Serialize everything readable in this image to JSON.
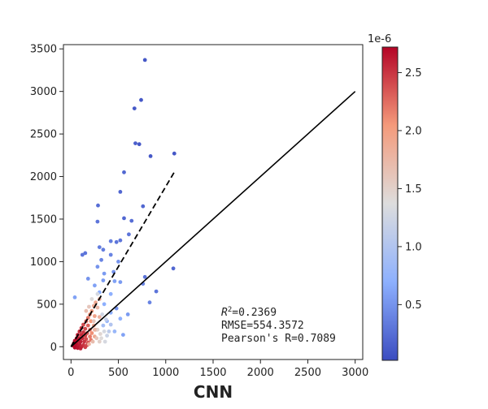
{
  "chart_data": {
    "type": "scatter",
    "title": "",
    "xlabel": "CNN",
    "ylabel": "",
    "xlim": [
      -80,
      3080
    ],
    "ylim": [
      -150,
      3550
    ],
    "xticks": [
      0,
      500,
      1000,
      1500,
      2000,
      2500,
      3000
    ],
    "yticks": [
      0,
      500,
      1000,
      1500,
      2000,
      2500,
      3000,
      3500
    ],
    "grid": false,
    "identity_line": {
      "x": [
        0,
        3000
      ],
      "y": [
        0,
        3000
      ],
      "style": "solid"
    },
    "fit_line": {
      "x": [
        0,
        1100
      ],
      "y": [
        0,
        2070
      ],
      "style": "dashed"
    },
    "annotations": {
      "r2_label": "R",
      "r2_value": "=0.2369",
      "rmse": "RMSE=554.3572",
      "pearson": "Pearson's R=0.7089"
    },
    "colorbar": {
      "cmap": "coolwarm",
      "range": [
        0.02,
        2.72
      ],
      "ticks": [
        0.5,
        1.0,
        1.5,
        2.0,
        2.5
      ],
      "tick_labels": [
        "0.5",
        "1.0",
        "1.5",
        "2.0",
        "2.5"
      ],
      "offset_label": "1e-6"
    },
    "points": [
      [
        780,
        3370,
        0.1
      ],
      [
        740,
        2900,
        0.1
      ],
      [
        670,
        2800,
        0.1
      ],
      [
        680,
        2390,
        0.15
      ],
      [
        720,
        2380,
        0.1
      ],
      [
        840,
        2240,
        0.1
      ],
      [
        1090,
        2270,
        0.1
      ],
      [
        560,
        2050,
        0.2
      ],
      [
        520,
        1820,
        0.2
      ],
      [
        285,
        1660,
        0.25
      ],
      [
        760,
        1650,
        0.2
      ],
      [
        560,
        1510,
        0.2
      ],
      [
        280,
        1470,
        0.3
      ],
      [
        640,
        1480,
        0.25
      ],
      [
        610,
        1320,
        0.3
      ],
      [
        420,
        1240,
        0.35
      ],
      [
        480,
        1230,
        0.3
      ],
      [
        520,
        1250,
        0.3
      ],
      [
        300,
        1170,
        0.35
      ],
      [
        340,
        1140,
        0.35
      ],
      [
        150,
        1100,
        0.3
      ],
      [
        120,
        1080,
        0.3
      ],
      [
        420,
        1080,
        0.4
      ],
      [
        320,
        1020,
        0.4
      ],
      [
        500,
        1000,
        0.5
      ],
      [
        280,
        940,
        0.5
      ],
      [
        1080,
        920,
        0.2
      ],
      [
        450,
        880,
        0.5
      ],
      [
        350,
        860,
        0.55
      ],
      [
        780,
        820,
        0.3
      ],
      [
        180,
        800,
        0.5
      ],
      [
        340,
        780,
        0.55
      ],
      [
        460,
        770,
        0.6
      ],
      [
        520,
        760,
        0.55
      ],
      [
        760,
        740,
        0.4
      ],
      [
        250,
        720,
        0.6
      ],
      [
        900,
        650,
        0.3
      ],
      [
        300,
        640,
        0.7
      ],
      [
        420,
        620,
        0.7
      ],
      [
        40,
        580,
        0.6
      ],
      [
        830,
        520,
        0.4
      ],
      [
        350,
        500,
        0.7
      ],
      [
        480,
        450,
        0.5
      ],
      [
        420,
        400,
        0.7
      ],
      [
        600,
        380,
        0.55
      ],
      [
        520,
        330,
        0.7
      ],
      [
        380,
        300,
        0.8
      ],
      [
        340,
        250,
        0.9
      ],
      [
        550,
        140,
        0.6
      ],
      [
        460,
        180,
        0.8
      ],
      [
        300,
        560,
        1.8
      ],
      [
        260,
        520,
        1.9
      ],
      [
        240,
        480,
        1.85
      ],
      [
        280,
        460,
        1.75
      ],
      [
        220,
        420,
        2.0
      ],
      [
        200,
        380,
        2.1
      ],
      [
        250,
        360,
        1.95
      ],
      [
        300,
        350,
        1.8
      ],
      [
        180,
        340,
        2.2
      ],
      [
        160,
        300,
        2.3
      ],
      [
        210,
        300,
        2.05
      ],
      [
        130,
        260,
        2.4
      ],
      [
        180,
        250,
        2.3
      ],
      [
        240,
        250,
        1.9
      ],
      [
        110,
        220,
        2.5
      ],
      [
        150,
        210,
        2.4
      ],
      [
        200,
        200,
        2.2
      ],
      [
        260,
        200,
        1.9
      ],
      [
        90,
        180,
        2.55
      ],
      [
        130,
        170,
        2.5
      ],
      [
        170,
        160,
        2.35
      ],
      [
        220,
        160,
        2.1
      ],
      [
        70,
        140,
        2.6
      ],
      [
        110,
        140,
        2.55
      ],
      [
        150,
        130,
        2.45
      ],
      [
        200,
        120,
        2.2
      ],
      [
        250,
        120,
        1.9
      ],
      [
        60,
        100,
        2.65
      ],
      [
        90,
        100,
        2.6
      ],
      [
        120,
        100,
        2.55
      ],
      [
        160,
        90,
        2.4
      ],
      [
        210,
        80,
        2.2
      ],
      [
        40,
        70,
        2.7
      ],
      [
        70,
        70,
        2.65
      ],
      [
        100,
        60,
        2.6
      ],
      [
        140,
        60,
        2.5
      ],
      [
        180,
        50,
        2.35
      ],
      [
        30,
        40,
        2.7
      ],
      [
        60,
        30,
        2.68
      ],
      [
        90,
        30,
        2.6
      ],
      [
        130,
        20,
        2.5
      ],
      [
        170,
        20,
        2.4
      ],
      [
        20,
        15,
        2.7
      ],
      [
        50,
        10,
        2.68
      ],
      [
        80,
        5,
        2.62
      ],
      [
        110,
        0,
        2.55
      ],
      [
        150,
        -5,
        2.45
      ],
      [
        40,
        -10,
        2.7
      ],
      [
        70,
        -15,
        2.66
      ],
      [
        100,
        -20,
        2.6
      ],
      [
        240,
        300,
        1.6
      ],
      [
        280,
        200,
        1.5
      ],
      [
        310,
        150,
        1.45
      ],
      [
        350,
        180,
        1.3
      ],
      [
        320,
        100,
        1.4
      ],
      [
        380,
        130,
        1.2
      ],
      [
        270,
        100,
        1.6
      ],
      [
        230,
        60,
        1.7
      ],
      [
        300,
        60,
        1.5
      ],
      [
        360,
        60,
        1.3
      ],
      [
        190,
        30,
        1.8
      ],
      [
        420,
        260,
        1.0
      ],
      [
        400,
        180,
        1.1
      ],
      [
        330,
        380,
        1.25
      ],
      [
        370,
        320,
        1.15
      ],
      [
        220,
        560,
        1.4
      ],
      [
        190,
        470,
        1.6
      ],
      [
        280,
        620,
        1.3
      ],
      [
        160,
        420,
        1.7
      ],
      [
        250,
        200,
        1.75
      ]
    ]
  }
}
